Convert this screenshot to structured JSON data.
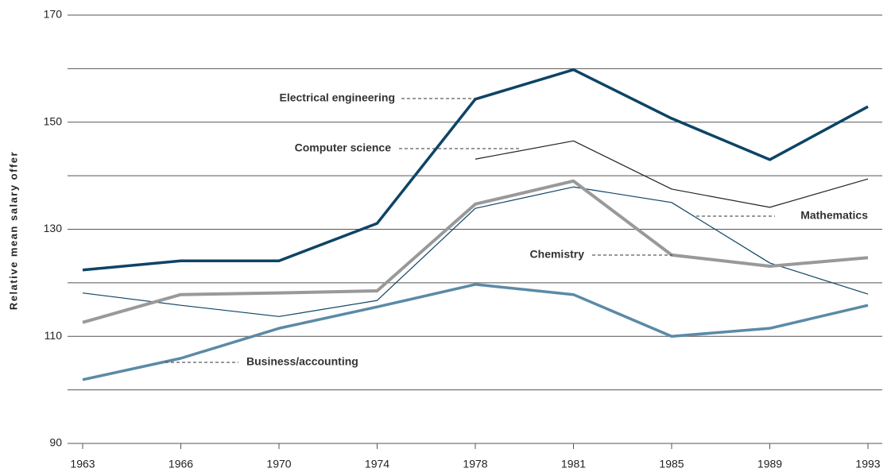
{
  "chart_data": {
    "type": "line",
    "y_label": "Relative mean salary offer",
    "categories": [
      "1963",
      "1966",
      "1970",
      "1974",
      "1978",
      "1981",
      "1985",
      "1989",
      "1993"
    ],
    "ylim": [
      90,
      170
    ],
    "yticks": [
      90,
      110,
      130,
      150,
      170
    ],
    "minor_yticks": [
      100,
      120,
      140,
      160
    ],
    "grid": true,
    "series": [
      {
        "name": "Electrical engineering",
        "color": "#0d4466",
        "width": 3.5,
        "values": [
          122.4,
          124.1,
          124.1,
          131.1,
          154.3,
          159.8,
          150.7,
          143.0,
          152.9
        ]
      },
      {
        "name": "Computer science",
        "color": "#222222",
        "width": 1.2,
        "values": [
          null,
          null,
          null,
          null,
          143.1,
          146.5,
          137.5,
          134.1,
          139.4
        ]
      },
      {
        "name": "Mathematics",
        "color": "#0d4466",
        "width": 1.2,
        "values": [
          118.1,
          115.8,
          113.7,
          116.7,
          133.9,
          137.9,
          135.0,
          123.7,
          117.9
        ]
      },
      {
        "name": "Chemistry",
        "color": "#999999",
        "width": 4,
        "values": [
          112.6,
          117.8,
          118.1,
          118.5,
          134.7,
          139.0,
          125.2,
          123.1,
          124.7
        ]
      },
      {
        "name": "Business/accounting",
        "color": "#5b8aa6",
        "width": 3.5,
        "values": [
          101.9,
          105.9,
          111.5,
          115.5,
          119.7,
          117.8,
          110.0,
          111.5,
          115.8
        ]
      }
    ]
  }
}
